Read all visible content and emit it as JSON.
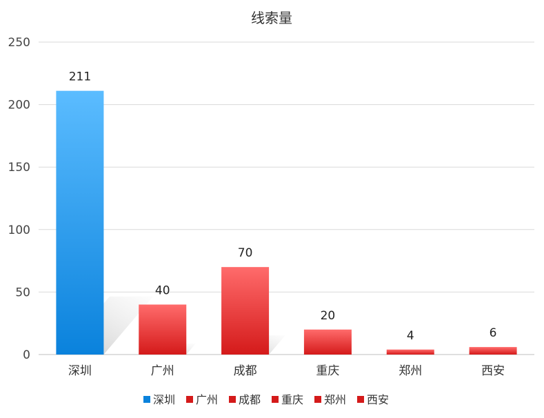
{
  "chart_data": {
    "type": "bar",
    "title": "线索量",
    "xlabel": "",
    "ylabel": "",
    "categories": [
      "深圳",
      "广州",
      "成都",
      "重庆",
      "郑州",
      "西安"
    ],
    "values": [
      211,
      40,
      70,
      20,
      4,
      6
    ],
    "ylim": [
      0,
      250
    ],
    "yticks": [
      0,
      50,
      100,
      150,
      200,
      250
    ],
    "grid": true,
    "legend_position": "bottom",
    "legend": [
      "深圳",
      "广州",
      "成都",
      "重庆",
      "郑州",
      "西安"
    ],
    "colors": {
      "highlight_top": "#5bbcff",
      "highlight_bottom": "#0a82dc",
      "default_top": "#ff6b6b",
      "default_bottom": "#d41a1a",
      "grid": "#d9d9d9",
      "axis": "#bfbfbf"
    },
    "highlight_index": 0
  }
}
